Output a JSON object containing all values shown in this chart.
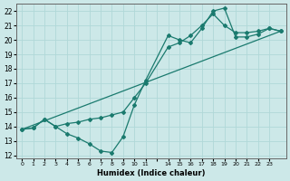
{
  "xlabel": "Humidex (Indice chaleur)",
  "bg_color": "#cce8e8",
  "line_color": "#1a7a6e",
  "grid_color": "#b0d8d8",
  "xlim": [
    -0.5,
    23.5
  ],
  "ylim": [
    11.8,
    22.5
  ],
  "yticks": [
    12,
    13,
    14,
    15,
    16,
    17,
    18,
    19,
    20,
    21,
    22
  ],
  "xtick_labels": [
    "0",
    "1",
    "2",
    "3",
    "4",
    "5",
    "6",
    "7",
    "8",
    "9",
    "10",
    "11",
    "",
    "14",
    "15",
    "16",
    "17",
    "18",
    "19",
    "20",
    "21",
    "22",
    "23"
  ],
  "line1_x": [
    0,
    1,
    2,
    3,
    4,
    5,
    6,
    7,
    8,
    9,
    10,
    11,
    13,
    14,
    15,
    16,
    17,
    18,
    19,
    20,
    21,
    22,
    23
  ],
  "line1_y": [
    13.8,
    13.9,
    14.5,
    14.0,
    13.5,
    13.2,
    12.8,
    12.3,
    12.2,
    13.3,
    15.5,
    17.2,
    20.3,
    20.0,
    19.8,
    20.8,
    22.0,
    22.2,
    20.2,
    20.2,
    20.4,
    20.8,
    20.6
  ],
  "line2_x": [
    0,
    1,
    2,
    3,
    4,
    5,
    6,
    7,
    8,
    9,
    10,
    11,
    13,
    14,
    15,
    16,
    17,
    18,
    19,
    20,
    21,
    22,
    23
  ],
  "line2_y": [
    13.8,
    13.9,
    14.5,
    14.0,
    14.2,
    14.3,
    14.5,
    14.6,
    14.8,
    15.0,
    16.0,
    17.0,
    19.5,
    19.8,
    20.3,
    21.0,
    21.8,
    21.0,
    20.5,
    20.5,
    20.6,
    20.8,
    20.6
  ],
  "line3_x": [
    0,
    23
  ],
  "line3_y": [
    13.8,
    20.6
  ]
}
